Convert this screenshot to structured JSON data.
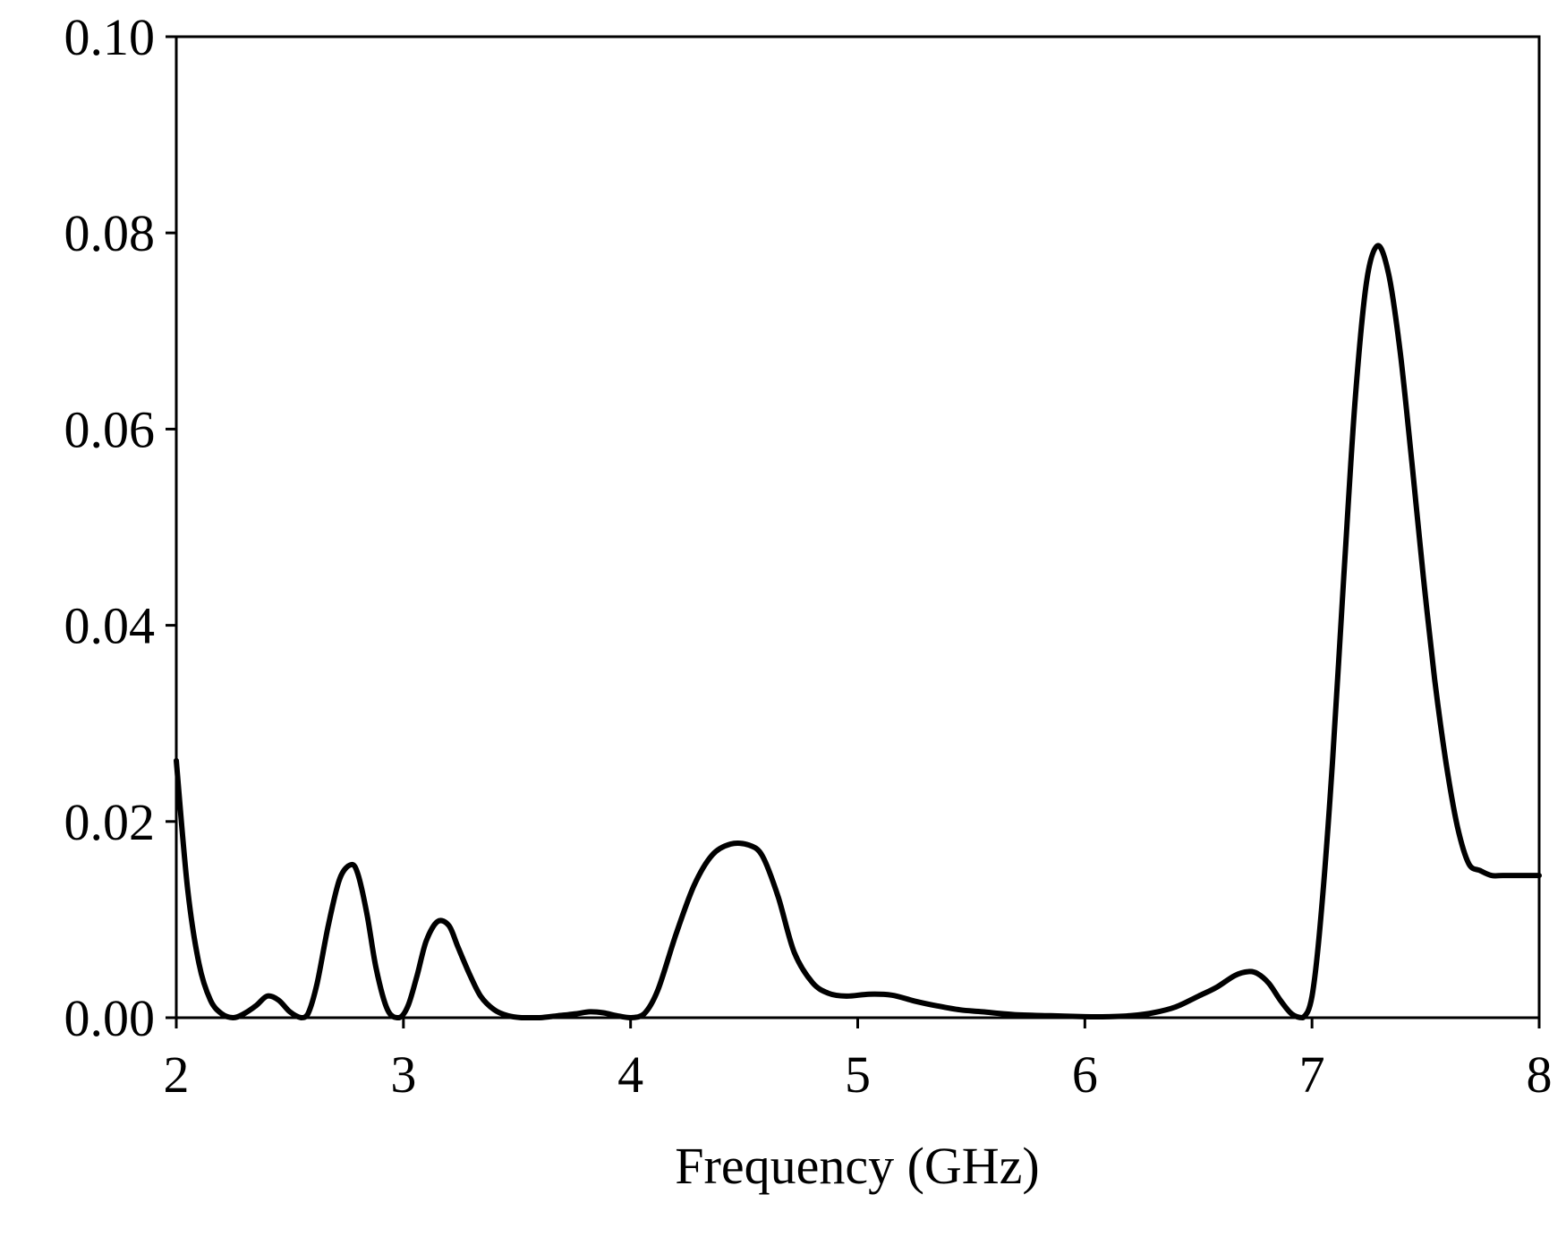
{
  "chart_data": {
    "type": "line",
    "title": "",
    "xlabel": "Frequency (GHz)",
    "ylabel": "",
    "xlim": [
      2,
      8
    ],
    "ylim": [
      0,
      0.1
    ],
    "xticks": [
      2,
      3,
      4,
      5,
      6,
      7,
      8
    ],
    "xtick_labels": [
      "2",
      "3",
      "4",
      "5",
      "6",
      "7",
      "8"
    ],
    "yticks": [
      0,
      0.02,
      0.04,
      0.06,
      0.08,
      0.1
    ],
    "ytick_labels": [
      "0.00",
      "0.02",
      "0.04",
      "0.06",
      "0.08",
      "0.10"
    ],
    "grid": false,
    "legend": "none",
    "series": [
      {
        "color": "#000000",
        "x": [
          2.0,
          2.05,
          2.1,
          2.15,
          2.2,
          2.25,
          2.29,
          2.35,
          2.4,
          2.45,
          2.5,
          2.55,
          2.58,
          2.62,
          2.67,
          2.72,
          2.77,
          2.8,
          2.84,
          2.88,
          2.93,
          2.98,
          3.02,
          3.06,
          3.1,
          3.15,
          3.2,
          3.24,
          3.29,
          3.34,
          3.4,
          3.46,
          3.52,
          3.6,
          3.68,
          3.76,
          3.82,
          3.88,
          3.94,
          4.0,
          4.06,
          4.12,
          4.2,
          4.28,
          4.36,
          4.44,
          4.52,
          4.58,
          4.65,
          4.72,
          4.8,
          4.87,
          4.95,
          5.05,
          5.15,
          5.25,
          5.35,
          5.45,
          5.55,
          5.7,
          5.85,
          6.0,
          6.1,
          6.2,
          6.3,
          6.4,
          6.5,
          6.58,
          6.66,
          6.72,
          6.76,
          6.81,
          6.86,
          6.91,
          6.96,
          7.0,
          7.04,
          7.09,
          7.14,
          7.19,
          7.24,
          7.29,
          7.34,
          7.39,
          7.44,
          7.49,
          7.54,
          7.59,
          7.64,
          7.69,
          7.74,
          7.79,
          7.84,
          7.89,
          7.94,
          8.0
        ],
        "y": [
          0.0262,
          0.0131,
          0.0055,
          0.0018,
          0.0004,
          0.0,
          0.0003,
          0.0012,
          0.0022,
          0.0018,
          0.0006,
          0.0,
          0.0004,
          0.0035,
          0.0095,
          0.0142,
          0.0156,
          0.0146,
          0.0105,
          0.005,
          0.0008,
          0.0,
          0.0012,
          0.0043,
          0.0078,
          0.0098,
          0.0094,
          0.0072,
          0.0045,
          0.0022,
          0.0008,
          0.0002,
          0.0,
          0.0,
          0.0002,
          0.0004,
          0.0006,
          0.0005,
          0.0002,
          0.0,
          0.0004,
          0.0028,
          0.0085,
          0.0135,
          0.0166,
          0.0177,
          0.0176,
          0.0165,
          0.0123,
          0.0067,
          0.0036,
          0.0025,
          0.0022,
          0.0024,
          0.0023,
          0.0017,
          0.0012,
          0.0008,
          0.0006,
          0.0003,
          0.0002,
          0.0001,
          0.0001,
          0.0002,
          0.0005,
          0.0011,
          0.0022,
          0.0031,
          0.0043,
          0.0047,
          0.0045,
          0.0035,
          0.0018,
          0.0004,
          0.0,
          0.0022,
          0.0105,
          0.026,
          0.045,
          0.063,
          0.075,
          0.0787,
          0.0755,
          0.0675,
          0.0565,
          0.045,
          0.0345,
          0.026,
          0.0195,
          0.0157,
          0.015,
          0.0145,
          0.0145,
          0.0145,
          0.0145,
          0.0145
        ]
      }
    ]
  }
}
